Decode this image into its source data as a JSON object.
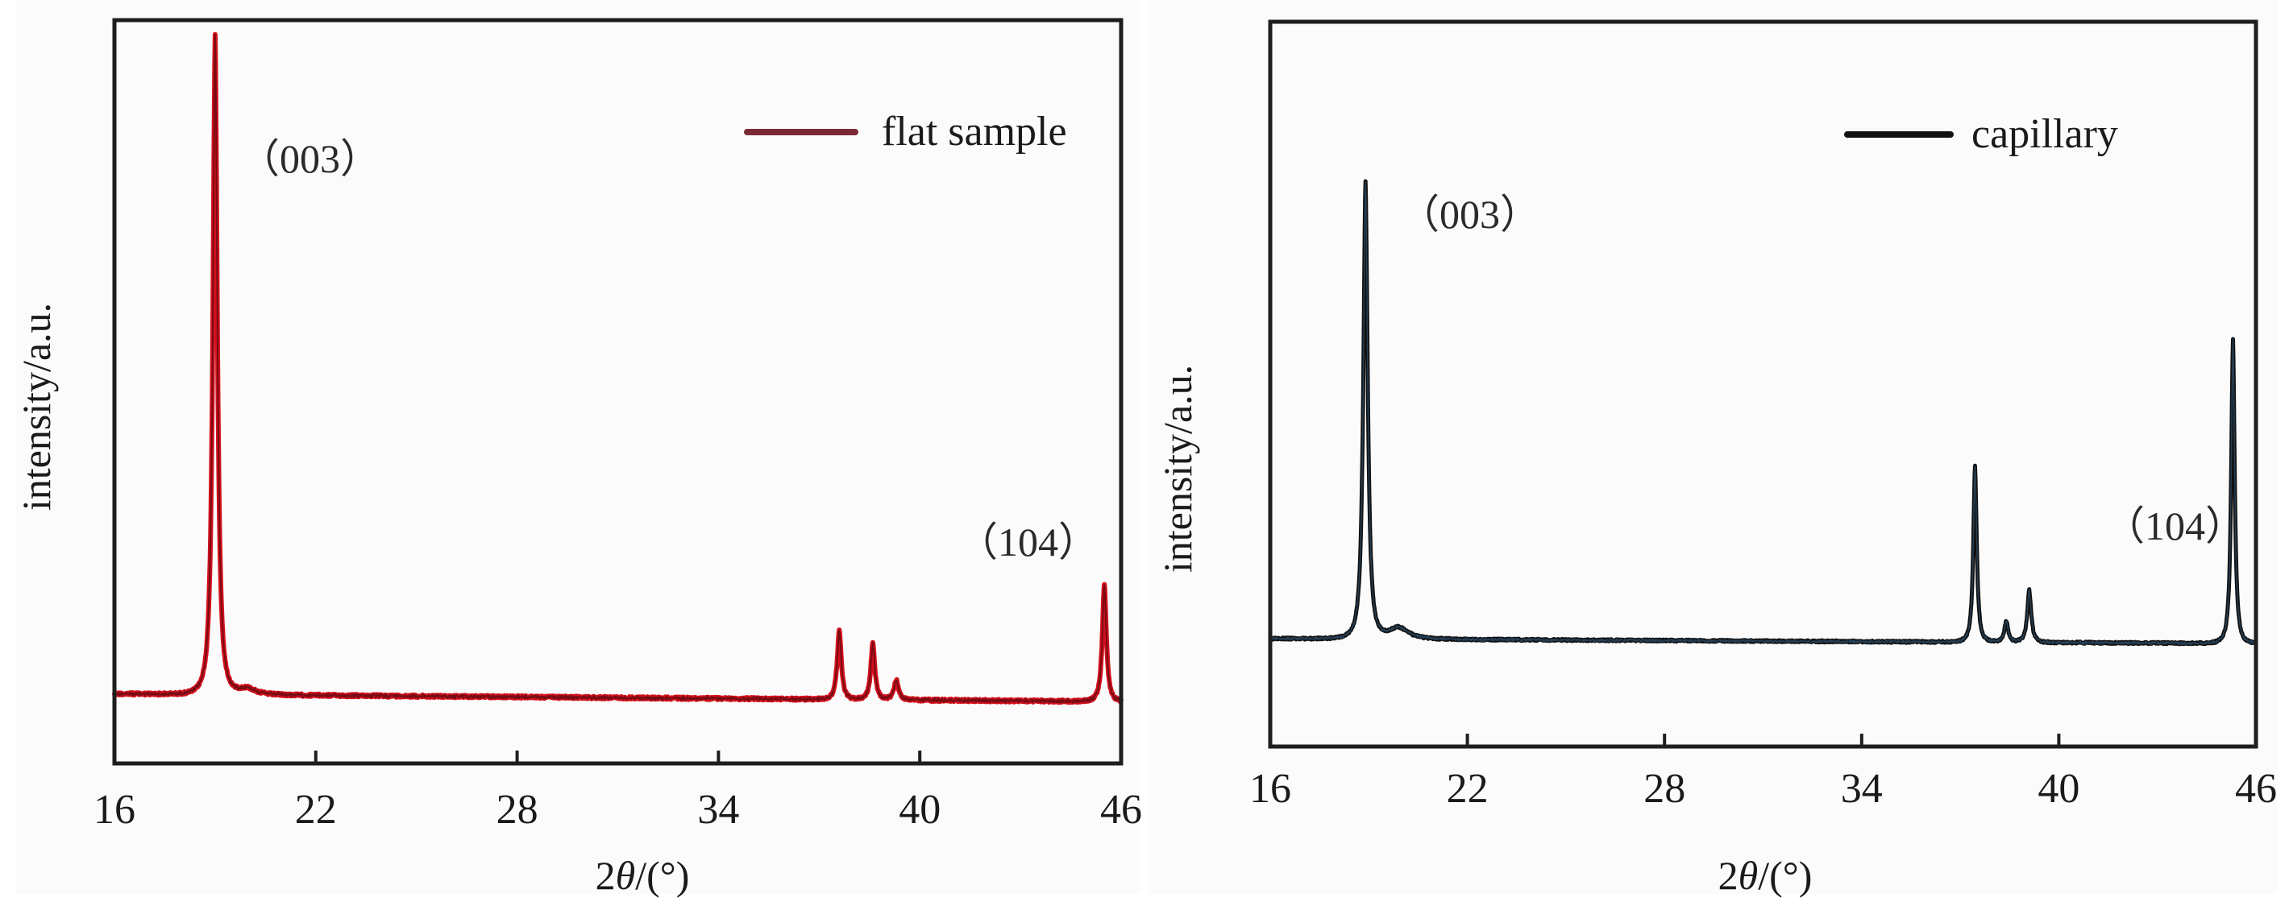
{
  "figure": {
    "panels": [
      {
        "id": "flat",
        "legend_label": "flat sample",
        "legend_color": "#7a2a35",
        "line_color": "#d4101c",
        "overlay_color": "#2a0a10",
        "ylabel": "intensity/a.u.",
        "xlabel_prefix": "2",
        "xlabel_theta": "θ",
        "xlabel_suffix": "/(°)",
        "xticks": [
          "16",
          "22",
          "28",
          "34",
          "40",
          "46"
        ],
        "annotations": [
          {
            "text": "（003）"
          },
          {
            "text": "（104）"
          }
        ]
      },
      {
        "id": "capillary",
        "legend_label": "capillary",
        "legend_color": "#111111",
        "line_color": "#111111",
        "overlay_color": "#3a6e9a",
        "ylabel": "intensity/a.u.",
        "xlabel_prefix": "2",
        "xlabel_theta": "θ",
        "xlabel_suffix": "/(°)",
        "xticks": [
          "16",
          "22",
          "28",
          "34",
          "40",
          "46"
        ],
        "annotations": [
          {
            "text": "（003）"
          },
          {
            "text": "（104）"
          }
        ]
      }
    ]
  },
  "chart_data": [
    {
      "type": "line",
      "title": "",
      "legend": [
        "flat sample"
      ],
      "legend_position": "upper right",
      "xlabel": "2θ/(°)",
      "ylabel": "intensity/a.u.",
      "xlim": [
        16,
        46
      ],
      "xticks": [
        16,
        22,
        28,
        34,
        40,
        46
      ],
      "yticks": [],
      "grid": false,
      "color": "#d4101c",
      "intensity_units": "relative (baseline = 0, max peak = 100)",
      "baseline": {
        "start": 0.8,
        "end": -0.4
      },
      "peaks": [
        {
          "two_theta": 19.0,
          "intensity": 100,
          "label": "（003）",
          "width": 0.09
        },
        {
          "two_theta": 19.95,
          "intensity": 1.0,
          "width": 0.35
        },
        {
          "two_theta": 37.6,
          "intensity": 10.7,
          "width": 0.08
        },
        {
          "two_theta": 38.6,
          "intensity": 8.7,
          "width": 0.08
        },
        {
          "two_theta": 39.3,
          "intensity": 3.0,
          "width": 0.09
        },
        {
          "two_theta": 45.5,
          "intensity": 17.8,
          "label": "（104）",
          "width": 0.08
        }
      ]
    },
    {
      "type": "line",
      "title": "",
      "legend": [
        "capillary"
      ],
      "legend_position": "upper right",
      "xlabel": "2θ/(°)",
      "ylabel": "intensity/a.u.",
      "xlim": [
        16,
        46
      ],
      "xticks": [
        16,
        22,
        28,
        34,
        40,
        46
      ],
      "yticks": [],
      "grid": false,
      "color": "#111111",
      "intensity_units": "relative (baseline = 0, max peak = 100)",
      "baseline": {
        "start": 0.9,
        "end": -0.2
      },
      "peaks": [
        {
          "two_theta": 18.9,
          "intensity": 100,
          "label": "（003）",
          "width": 0.09
        },
        {
          "two_theta": 19.9,
          "intensity": 2.6,
          "width": 0.4
        },
        {
          "two_theta": 37.45,
          "intensity": 38.4,
          "width": 0.07
        },
        {
          "two_theta": 38.4,
          "intensity": 4.6,
          "width": 0.08
        },
        {
          "two_theta": 39.1,
          "intensity": 11.4,
          "width": 0.08
        },
        {
          "two_theta": 45.3,
          "intensity": 66.5,
          "label": "（104）",
          "width": 0.07
        }
      ]
    }
  ]
}
